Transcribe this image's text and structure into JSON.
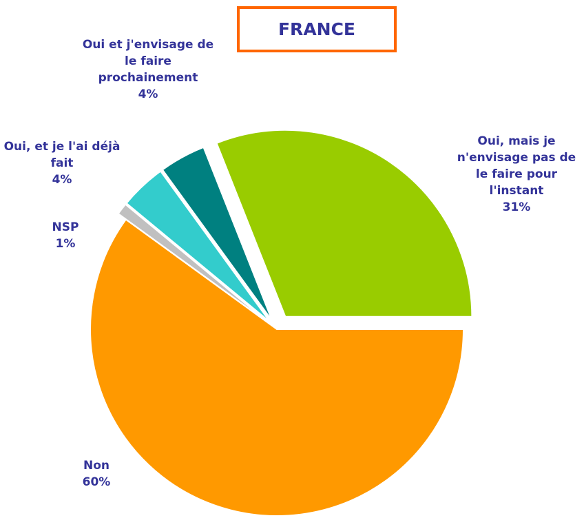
{
  "chart_data": {
    "type": "pie",
    "title": "FRANCE",
    "categories": [
      "Oui, mais je n'envisage pas de le faire pour l'instant",
      "Non",
      "NSP",
      "Oui, et je l'ai déjà fait",
      "Oui et j'envisage de le faire prochainement"
    ],
    "values": [
      31,
      60,
      1,
      4,
      4
    ],
    "value_labels": [
      "31%",
      "60%",
      "1%",
      "4%",
      "4%"
    ],
    "colors": [
      "#99cc00",
      "#ff9900",
      "#c0c0c0",
      "#33cccc",
      "#008080"
    ]
  }
}
